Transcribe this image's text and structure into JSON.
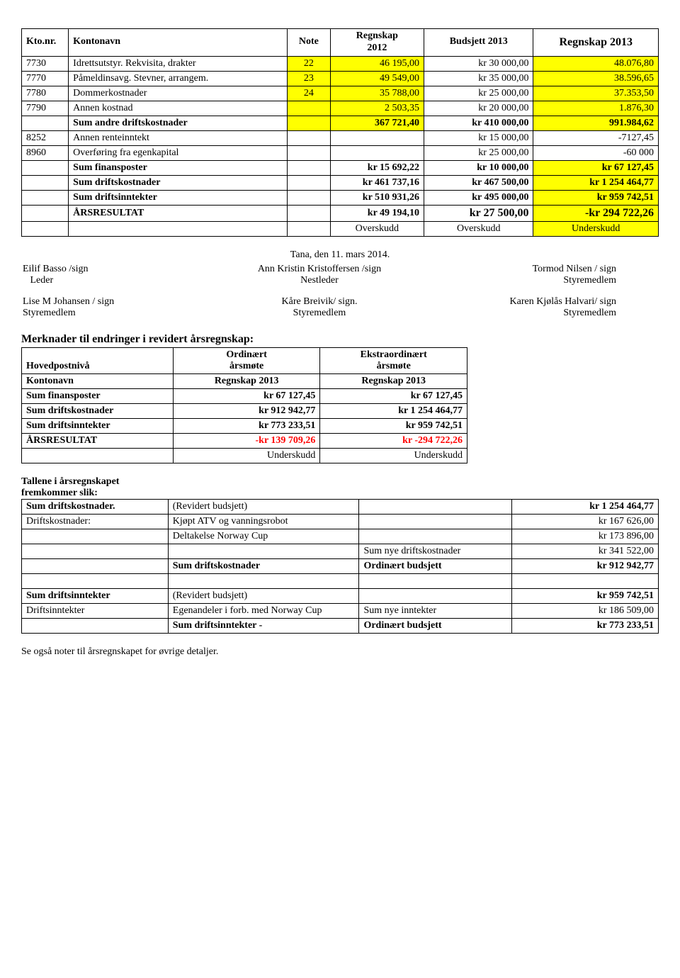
{
  "main_table": {
    "headers": {
      "c1": "Kto.nr.",
      "c2": "Kontonavn",
      "c3": "Note",
      "c4a": "Regnskap",
      "c4b": "2012",
      "c5": "Budsjett 2013",
      "c6": "Regnskap 2013"
    },
    "rows": [
      {
        "kto": "7730",
        "navn": "Idrettsutstyr. Rekvisita, drakter",
        "note": "22",
        "r2012": "46 195,00",
        "bud": "kr 30 000,00",
        "r2013": "48.076,80",
        "y_note": true,
        "y_r2012": true,
        "y_r2013": true
      },
      {
        "kto": "7770",
        "navn": "Påmeldinsavg. Stevner, arrangem.",
        "note": "23",
        "r2012": "49 549,00",
        "bud": "kr 35 000,00",
        "r2013": "38.596,65",
        "y_note": true,
        "y_r2012": true,
        "y_r2013": true
      },
      {
        "kto": "7780",
        "navn": "Dommerkostnader",
        "note": "24",
        "r2012": "35 788,00",
        "bud": "kr 25 000,00",
        "r2013": "37.353,50",
        "y_note": true,
        "y_r2012": true,
        "y_r2013": true
      },
      {
        "kto": "7790",
        "navn": "Annen kostnad",
        "note": "",
        "r2012": "2 503,35",
        "bud": "kr 20 000,00",
        "r2013": "1.876,30",
        "y_note": true,
        "y_r2012": true,
        "y_r2013": true
      },
      {
        "kto": "",
        "navn": "Sum andre driftskostnader",
        "note": "",
        "r2012": "367 721,40",
        "bud": "kr 410 000,00",
        "r2013": "991.984,62",
        "bold": true,
        "y_note": true,
        "y_r2012": true,
        "y_r2013": true
      },
      {
        "kto": "8252",
        "navn": "Annen renteinntekt",
        "note": "",
        "r2012": "",
        "bud": "kr 15 000,00",
        "r2013": "-7127,45"
      },
      {
        "kto": "8960",
        "navn": "Overføring fra egenkapital",
        "note": "",
        "r2012": "",
        "bud": "kr 25 000,00",
        "r2013": "-60 000"
      },
      {
        "kto": "",
        "navn": "Sum finansposter",
        "note": "",
        "r2012": "kr 15 692,22",
        "bud": "kr 10 000,00",
        "r2013": "kr 67 127,45",
        "bold": true,
        "y_r2013": true
      },
      {
        "kto": "",
        "navn": "Sum driftskostnader",
        "note": "",
        "r2012": "kr 461 737,16",
        "bud": "kr 467 500,00",
        "r2013": "kr 1 254 464,77",
        "bold": true,
        "y_r2013": true
      },
      {
        "kto": "",
        "navn": "Sum driftsinntekter",
        "note": "",
        "r2012": "kr 510 931,26",
        "bud": "kr 495 000,00",
        "r2013": "kr 959 742,51",
        "bold": true,
        "y_r2013": true
      },
      {
        "kto": "",
        "navn": "ÅRSRESULTAT",
        "note": "",
        "r2012": "kr 49 194,10",
        "bud": "kr 27 500,00",
        "r2013": "-kr 294 722,26",
        "bold": true,
        "y_r2013": true,
        "big": true
      },
      {
        "kto": "",
        "navn": "",
        "note": "",
        "r2012": "Overskudd",
        "bud": "Overskudd",
        "r2013": "Underskudd",
        "y_r2013": true,
        "centered": true
      }
    ]
  },
  "date_line": "Tana, den 11. mars 2014.",
  "sign1": [
    {
      "name": "Eilif Basso /sign",
      "role": "Leder"
    },
    {
      "name": "Ann Kristin Kristoffersen /sign",
      "role": "Nestleder"
    },
    {
      "name": "Tormod Nilsen / sign",
      "role": "Styremedlem"
    }
  ],
  "sign2": [
    {
      "name": "Lise M Johansen / sign",
      "role": "Styremedlem"
    },
    {
      "name": "Kåre Breivik/ sign.",
      "role": "Styremedlem"
    },
    {
      "name": "Karen Kjølås Halvari/ sign",
      "role": "Styremedlem"
    }
  ],
  "notes_heading": "Merknader til endringer i revidert årsregnskap:",
  "table2": {
    "h_row1": {
      "c1": "Hovedpostnivå",
      "c2a": "Ordinært",
      "c2b": "årsmøte",
      "c3a": "Ekstraordinært",
      "c3b": "årsmøte"
    },
    "h_row2": {
      "c1": "Kontonavn",
      "c2": "Regnskap 2013",
      "c3": "Regnskap 2013"
    },
    "rows": [
      {
        "c1": "Sum finansposter",
        "c2": "kr 67 127,45",
        "c3": "kr 67 127,45",
        "bold": true
      },
      {
        "c1": "Sum driftskostnader",
        "c2": "kr 912 942,77",
        "c3": "kr 1 254 464,77",
        "bold": true
      },
      {
        "c1": "Sum driftsinntekter",
        "c2": "kr 773 233,51",
        "c3": "kr 959 742,51",
        "bold": true
      },
      {
        "c1": "ÅRSRESULTAT",
        "c2": "-kr 139 709,26",
        "c3": "kr -294 722,26",
        "bold": true,
        "red": true
      },
      {
        "c1": "",
        "c2": "Underskudd",
        "c3": "Underskudd"
      }
    ]
  },
  "table3_heading1": "Tallene i årsregnskapet",
  "table3_heading2": "fremkommer slik:",
  "table3": {
    "rows": [
      {
        "c1": "Sum driftskostnader.",
        "c2": "(Revidert budsjett)",
        "c3": "",
        "c4": "kr 1 254 464,77",
        "b1": true,
        "b4": true
      },
      {
        "c1": "Driftskostnader:",
        "c2": "Kjøpt ATV og vanningsrobot",
        "c3": "",
        "c4": "kr 167 626,00"
      },
      {
        "c1": "",
        "c2": "Deltakelse Norway Cup",
        "c3": "",
        "c4": "kr 173 896,00"
      },
      {
        "c1": "",
        "c2": "",
        "c3": "Sum nye driftskostnader",
        "c4": "kr 341 522,00"
      },
      {
        "c1": "",
        "c2": "Sum driftskostnader",
        "c3": "Ordinært budsjett",
        "c4": "kr 912 942,77",
        "b2": true,
        "b3": true,
        "b4": true
      },
      {
        "spacer": true
      },
      {
        "c1": "Sum driftsinntekter",
        "c2": "(Revidert budsjett)",
        "c3": "",
        "c4": "kr 959 742,51",
        "b1": true,
        "b4": true
      },
      {
        "c1": "Driftsinntekter",
        "c2": "Egenandeler i forb. med Norway Cup",
        "c3": "Sum nye inntekter",
        "c4": "kr 186 509,00"
      },
      {
        "c1": "",
        "c2": "Sum driftsinntekter -",
        "c3": "Ordinært budsjett",
        "c4": "kr 773 233,51",
        "b2": true,
        "b3": true,
        "b4": true
      }
    ]
  },
  "footnote": "Se også noter til årsregnskapet for øvrige detaljer."
}
